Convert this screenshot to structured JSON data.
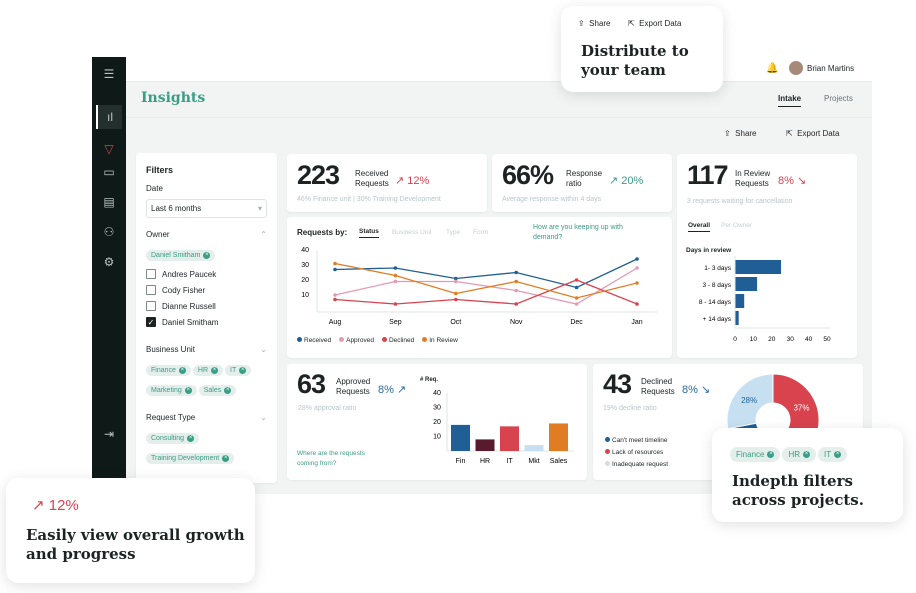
{
  "app": {
    "title": "Insights",
    "tabs": [
      {
        "label": "Intake",
        "active": true
      },
      {
        "label": "Projects",
        "active": false
      }
    ],
    "user": "Brian Martins",
    "share": "Share",
    "export": "Export Data"
  },
  "sidebar": {
    "icons": [
      "menu-icon",
      "insights-icon",
      "filter-icon",
      "card-icon",
      "document-icon",
      "users-icon",
      "settings-icon",
      "logout-icon"
    ]
  },
  "filters": {
    "title": "Filters",
    "date_label": "Date",
    "date_value": "Last 6 months",
    "owner": {
      "label": "Owner",
      "chips": [
        "Daniel Smitham"
      ],
      "options": [
        {
          "name": "Andres Paucek",
          "checked": false
        },
        {
          "name": "Cody Fisher",
          "checked": false
        },
        {
          "name": "Dianne Russell",
          "checked": false
        },
        {
          "name": "Daniel Smitham",
          "checked": true
        }
      ]
    },
    "business_unit": {
      "label": "Business Unit",
      "chips": [
        "Finance",
        "HR",
        "IT",
        "Marketing",
        "Sales"
      ]
    },
    "request_type": {
      "label": "Request Type",
      "chips": [
        "Consulting",
        "Training Development"
      ]
    }
  },
  "kpis": {
    "received": {
      "value": "223",
      "label1": "Received",
      "label2": "Requests",
      "change": "12%",
      "sub": "46% Finance unit  |  30% Training Development"
    },
    "response": {
      "value": "66%",
      "label1": "Response",
      "label2": "ratio",
      "change": "20%",
      "sub": "Average response within 4 days"
    },
    "review": {
      "value": "117",
      "label1": "In Review",
      "label2": "Requests",
      "change": "8%",
      "sub": "3 requests waiting for cancellation",
      "tabs": [
        "Overall",
        "Per Owner"
      ],
      "chart_title": "Days in review"
    },
    "approved": {
      "value": "63",
      "label1": "Approved",
      "label2": "Requests",
      "change": "8%",
      "sub": "28% approval ratio",
      "question": "Where are the requests coming from?",
      "ylabel": "# Req."
    },
    "declined": {
      "value": "43",
      "label1": "Declined",
      "label2": "Requests",
      "change": "8%",
      "sub": "19% decline ratio",
      "legend": [
        "Can't meet timeline",
        "Lack of resources",
        "Inadequate request"
      ]
    }
  },
  "trend": {
    "title": "Requests by:",
    "tabs": [
      "Status",
      "Business Unit",
      "Type",
      "Form"
    ],
    "question": "How are you keeping up with demand?"
  },
  "colors": {
    "accent": "#3a9d85",
    "received": "#1f5f95",
    "approved": "#e39bb3",
    "declined": "#d8434e",
    "review": "#e07c22",
    "dark_red": "#5a1a2e",
    "light_blue": "#c6e0f2"
  },
  "chart_data": [
    {
      "type": "line",
      "categories": [
        "Aug",
        "Sep",
        "Oct",
        "Nov",
        "Dec",
        "Jan"
      ],
      "ylim": [
        0,
        42
      ],
      "yticks": [
        10,
        20,
        30,
        40
      ],
      "series": [
        {
          "name": "Received",
          "values": [
            27,
            28,
            21,
            25,
            15,
            34
          ]
        },
        {
          "name": "Approved",
          "values": [
            10,
            19,
            19,
            13,
            4,
            28
          ]
        },
        {
          "name": "Declined",
          "values": [
            7,
            4,
            7,
            4,
            20,
            4
          ]
        },
        {
          "name": "In Review",
          "values": [
            31,
            23,
            11,
            19,
            8,
            18
          ]
        }
      ]
    },
    {
      "type": "bar",
      "orientation": "horizontal",
      "title": "Days in review",
      "categories": [
        "1- 3 days",
        "3 - 8 days",
        "8 - 14 days",
        "+ 14 days"
      ],
      "values": [
        25,
        12,
        5,
        2
      ],
      "xlim": [
        0,
        50
      ],
      "xticks": [
        0,
        10,
        20,
        30,
        40,
        50
      ]
    },
    {
      "type": "bar",
      "ylabel": "# Req.",
      "categories": [
        "Fin",
        "HR",
        "IT",
        "Mkt",
        "Sales"
      ],
      "values": [
        18,
        8,
        17,
        4,
        19
      ],
      "ylim": [
        0,
        40
      ],
      "yticks": [
        10,
        20,
        30,
        40
      ]
    },
    {
      "type": "pie",
      "categories": [
        "Lack of resources",
        "Can't meet timeline",
        "Inadequate request"
      ],
      "values": [
        37,
        35,
        28
      ],
      "labels": [
        "37%",
        "",
        "28%"
      ]
    }
  ],
  "callouts": {
    "share": "Share",
    "export": "Export Data",
    "distribute": "Distribute to your team",
    "growth_change": "12%",
    "growth": "Easily view overall growth and progress",
    "filter_chips": [
      "Finance",
      "HR",
      "IT"
    ],
    "indepth": "Indepth filters across projects."
  }
}
